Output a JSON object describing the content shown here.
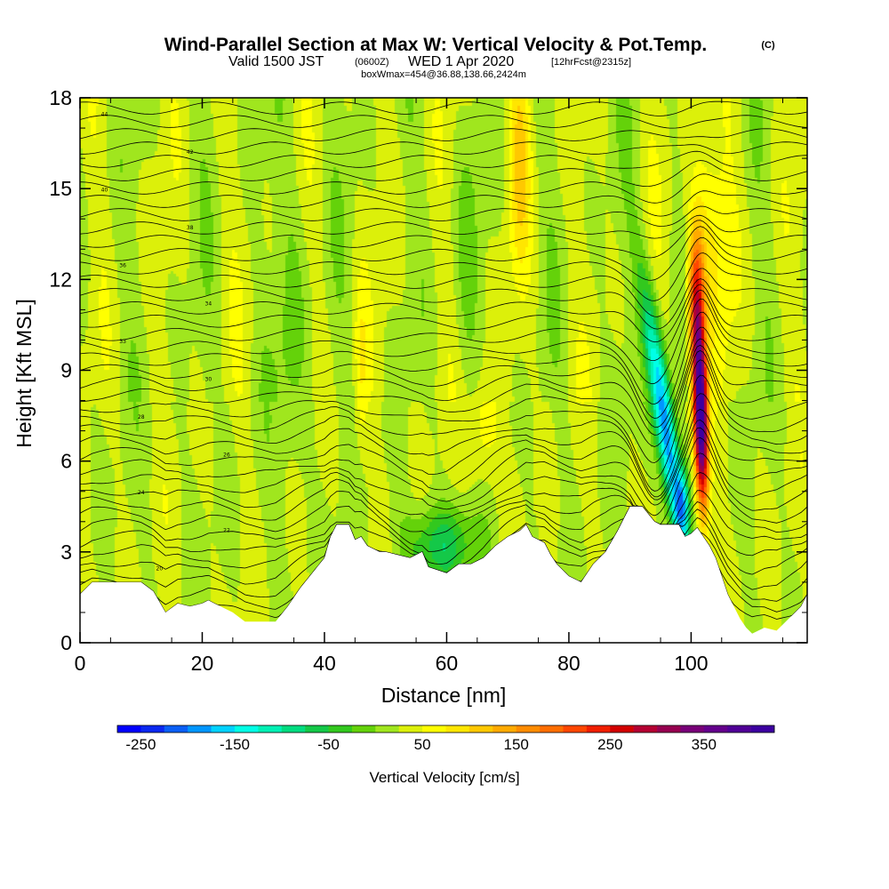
{
  "header": {
    "title": "Wind-Parallel Section at Max W: Vertical Velocity & Pot.Temp.",
    "copyright": "(C)",
    "valid_prefix": "Valid 1500 JST",
    "valid_utc": "(0600Z)",
    "valid_date": "WED 1 Apr 2020",
    "forecast_info": "[12hrFcst@2315z]",
    "box_info": "boxWmax=454@36.88,138.66,2424m"
  },
  "chart_data": {
    "type": "heatmap",
    "title": "Wind-Parallel Section at Max W: Vertical Velocity & Pot.Temp.",
    "xlabel": "Distance [nm]",
    "ylabel": "Height [Kft MSL]",
    "xlim": [
      0,
      119
    ],
    "ylim": [
      0,
      18
    ],
    "x_ticks": [
      0,
      20,
      40,
      60,
      80,
      100
    ],
    "y_ticks": [
      0,
      3,
      6,
      9,
      12,
      15,
      18
    ],
    "x_tick_labels": [
      "0",
      "20",
      "40",
      "60",
      "80",
      "100"
    ],
    "y_tick_labels": [
      "0",
      "3",
      "6",
      "9",
      "12",
      "15",
      "18"
    ],
    "colorbar": {
      "title": "Vertical Velocity [cm/s]",
      "min": -275,
      "max": 425,
      "step": 25,
      "tick_values": [
        "-250",
        "-150",
        "-50",
        "50",
        "150",
        "250",
        "350"
      ],
      "colors": [
        "#0000ff",
        "#0a28f0",
        "#0a5ff5",
        "#0096ff",
        "#00d2ff",
        "#00ffe6",
        "#00f0b4",
        "#00dc80",
        "#14c848",
        "#32c81e",
        "#64d20a",
        "#a0e61e",
        "#dcf00a",
        "#ffff00",
        "#ffe600",
        "#ffc800",
        "#ffaa00",
        "#ff8c00",
        "#ff6e00",
        "#ff4600",
        "#f01e00",
        "#d20000",
        "#b40032",
        "#960050",
        "#780078",
        "#64008c",
        "#500096",
        "#3c00a0"
      ]
    },
    "background_level": 25,
    "features": [
      {
        "name": "downdraft",
        "x": 93,
        "z": 8,
        "w": -200
      },
      {
        "name": "downdraft-core",
        "x": 98,
        "z": 4.5,
        "w": -270
      },
      {
        "name": "updraft",
        "x": 101.5,
        "z": 8,
        "w": 454
      },
      {
        "name": "updraft-upper",
        "x": 101,
        "z": 12,
        "w": 150
      },
      {
        "name": "weak-descent",
        "x": 59,
        "z": 3,
        "w": -80
      }
    ],
    "contour_labels": [
      "44",
      "42",
      "40",
      "38",
      "36",
      "34",
      "33",
      "30",
      "28",
      "26",
      "24",
      "22",
      "20"
    ],
    "terrain_kft": [
      [
        0,
        1.6
      ],
      [
        2,
        2.0
      ],
      [
        10,
        2.0
      ],
      [
        12,
        1.7
      ],
      [
        14,
        1.0
      ],
      [
        16,
        1.3
      ],
      [
        18,
        1.2
      ],
      [
        20,
        1.3
      ],
      [
        21,
        1.4
      ],
      [
        22,
        1.3
      ],
      [
        25,
        1.0
      ],
      [
        27,
        0.7
      ],
      [
        32,
        0.7
      ],
      [
        34,
        1.2
      ],
      [
        36,
        1.8
      ],
      [
        38,
        2.3
      ],
      [
        40,
        2.8
      ],
      [
        41,
        3.5
      ],
      [
        42,
        3.9
      ],
      [
        44,
        3.9
      ],
      [
        45,
        3.4
      ],
      [
        46,
        3.5
      ],
      [
        47,
        3.2
      ],
      [
        49,
        3.0
      ],
      [
        50,
        3.0
      ],
      [
        52,
        2.9
      ],
      [
        54,
        2.8
      ],
      [
        56,
        3.0
      ],
      [
        57,
        2.5
      ],
      [
        60,
        2.3
      ],
      [
        62,
        2.6
      ],
      [
        64,
        2.6
      ],
      [
        66,
        2.8
      ],
      [
        68,
        3.2
      ],
      [
        70,
        3.5
      ],
      [
        72,
        3.7
      ],
      [
        73,
        3.9
      ],
      [
        74,
        3.5
      ],
      [
        76,
        3.3
      ],
      [
        77,
        2.9
      ],
      [
        78,
        2.6
      ],
      [
        80,
        2.2
      ],
      [
        82,
        2.0
      ],
      [
        83,
        2.3
      ],
      [
        84,
        2.6
      ],
      [
        86,
        3.0
      ],
      [
        88,
        3.7
      ],
      [
        90,
        4.5
      ],
      [
        92,
        4.5
      ],
      [
        94,
        4.0
      ],
      [
        95,
        3.9
      ],
      [
        98,
        3.9
      ],
      [
        99,
        3.5
      ],
      [
        100,
        3.6
      ],
      [
        101,
        3.8
      ],
      [
        102,
        3.5
      ],
      [
        103,
        3.2
      ],
      [
        104,
        2.8
      ],
      [
        105,
        2.2
      ],
      [
        106,
        1.6
      ],
      [
        107,
        1.2
      ],
      [
        108,
        0.8
      ],
      [
        109,
        0.5
      ],
      [
        110,
        0.3
      ],
      [
        112,
        0.5
      ],
      [
        114,
        0.4
      ],
      [
        116,
        0.8
      ],
      [
        118,
        1.2
      ],
      [
        119,
        1.6
      ]
    ]
  }
}
